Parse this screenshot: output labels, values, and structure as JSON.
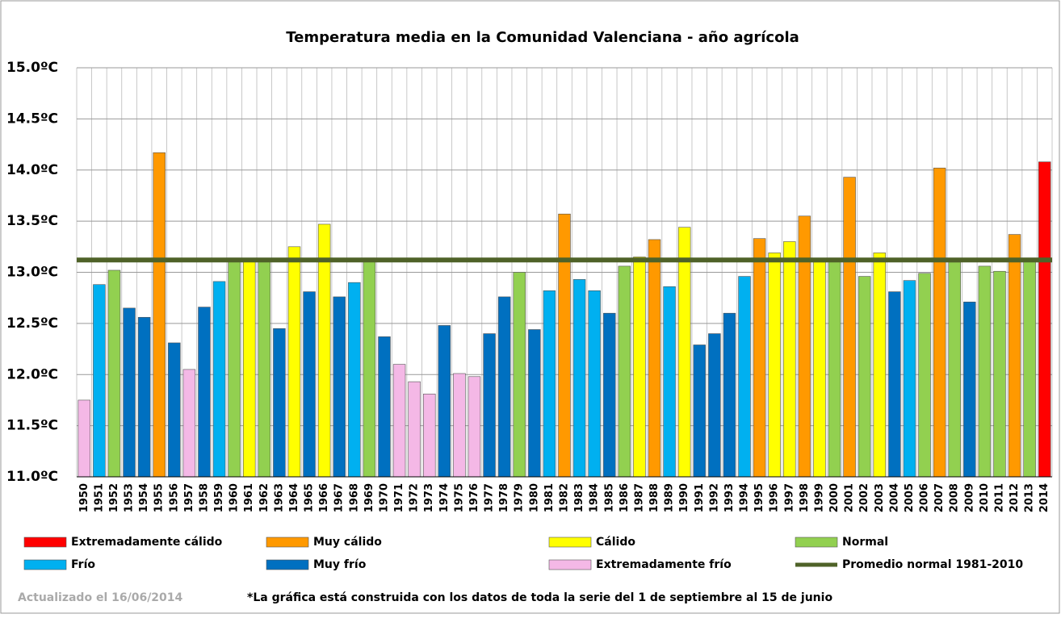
{
  "chart_data": {
    "type": "bar",
    "title": "Temperatura media en la Comunidad Valenciana - año agrícola",
    "categories": [
      "1950",
      "1951",
      "1952",
      "1953",
      "1954",
      "1955",
      "1956",
      "1957",
      "1958",
      "1959",
      "1960",
      "1961",
      "1962",
      "1963",
      "1964",
      "1965",
      "1966",
      "1967",
      "1968",
      "1969",
      "1970",
      "1971",
      "1972",
      "1973",
      "1974",
      "1975",
      "1976",
      "1977",
      "1978",
      "1979",
      "1980",
      "1981",
      "1982",
      "1983",
      "1984",
      "1985",
      "1986",
      "1987",
      "1988",
      "1989",
      "1990",
      "1991",
      "1992",
      "1993",
      "1994",
      "1995",
      "1996",
      "1997",
      "1998",
      "1999",
      "2000",
      "2001",
      "2002",
      "2003",
      "2004",
      "2005",
      "2006",
      "2007",
      "2008",
      "2009",
      "2010",
      "2011",
      "2012",
      "2013",
      "2014"
    ],
    "values": [
      11.75,
      12.88,
      13.02,
      12.65,
      12.56,
      14.17,
      12.31,
      12.05,
      12.66,
      12.91,
      13.14,
      13.11,
      13.11,
      12.45,
      13.25,
      12.81,
      13.47,
      12.76,
      12.9,
      13.14,
      12.37,
      12.1,
      11.93,
      11.81,
      12.48,
      12.01,
      11.98,
      12.4,
      12.76,
      13.0,
      12.44,
      12.82,
      13.57,
      12.93,
      12.82,
      12.6,
      13.06,
      13.15,
      13.32,
      12.86,
      13.44,
      12.29,
      12.4,
      12.6,
      12.96,
      13.33,
      13.19,
      13.3,
      13.55,
      13.1,
      13.14,
      13.93,
      12.96,
      13.19,
      12.81,
      12.92,
      12.99,
      14.02,
      13.1,
      12.71,
      13.06,
      13.01,
      13.37,
      13.14,
      14.08
    ],
    "colors": [
      "#f4b8e6",
      "#00b0f0",
      "#92d050",
      "#0070c0",
      "#0070c0",
      "#ff9900",
      "#0070c0",
      "#f4b8e6",
      "#0070c0",
      "#00b0f0",
      "#92d050",
      "#ffff00",
      "#92d050",
      "#0070c0",
      "#ffff00",
      "#0070c0",
      "#ffff00",
      "#0070c0",
      "#00b0f0",
      "#92d050",
      "#0070c0",
      "#f4b8e6",
      "#f4b8e6",
      "#f4b8e6",
      "#0070c0",
      "#f4b8e6",
      "#f4b8e6",
      "#0070c0",
      "#0070c0",
      "#92d050",
      "#0070c0",
      "#00b0f0",
      "#ff9900",
      "#00b0f0",
      "#00b0f0",
      "#0070c0",
      "#92d050",
      "#ffff00",
      "#ff9900",
      "#00b0f0",
      "#ffff00",
      "#0070c0",
      "#0070c0",
      "#0070c0",
      "#00b0f0",
      "#ff9900",
      "#ffff00",
      "#ffff00",
      "#ff9900",
      "#ffff00",
      "#92d050",
      "#ff9900",
      "#92d050",
      "#ffff00",
      "#0070c0",
      "#00b0f0",
      "#92d050",
      "#ff9900",
      "#92d050",
      "#0070c0",
      "#92d050",
      "#92d050",
      "#ff9900",
      "#92d050",
      "#ff0000"
    ],
    "legend": [
      {
        "name": "Extremadamente cálido",
        "color": "#ff0000"
      },
      {
        "name": "Muy cálido",
        "color": "#ff9900"
      },
      {
        "name": "Cálido",
        "color": "#ffff00"
      },
      {
        "name": "Normal",
        "color": "#92d050"
      },
      {
        "name": "Frío",
        "color": "#00b0f0"
      },
      {
        "name": "Muy frío",
        "color": "#0070c0"
      },
      {
        "name": "Extremadamente frío",
        "color": "#f4b8e6"
      }
    ],
    "reference_line": {
      "name": "Promedio normal 1981-2010",
      "value": 13.12,
      "color": "#4f6228"
    },
    "ylim": [
      11.0,
      15.0
    ],
    "yticks": [
      {
        "value": 11.0,
        "label": "11.0ºC"
      },
      {
        "value": 11.5,
        "label": "11.5ºC"
      },
      {
        "value": 12.0,
        "label": "12.0ºC"
      },
      {
        "value": 12.5,
        "label": "12.5ºC"
      },
      {
        "value": 13.0,
        "label": "13.0ºC"
      },
      {
        "value": 13.5,
        "label": "13.5ºC"
      },
      {
        "value": 14.0,
        "label": "14.0ºC"
      },
      {
        "value": 14.5,
        "label": "14.5ºC"
      },
      {
        "value": 15.0,
        "label": "15.0ºC"
      }
    ],
    "grid": true,
    "updated": "Actualizado el  16/06/2014",
    "note": "*La gráfica está construida con los datos de toda la serie del 1 de septiembre al 15 de junio"
  }
}
